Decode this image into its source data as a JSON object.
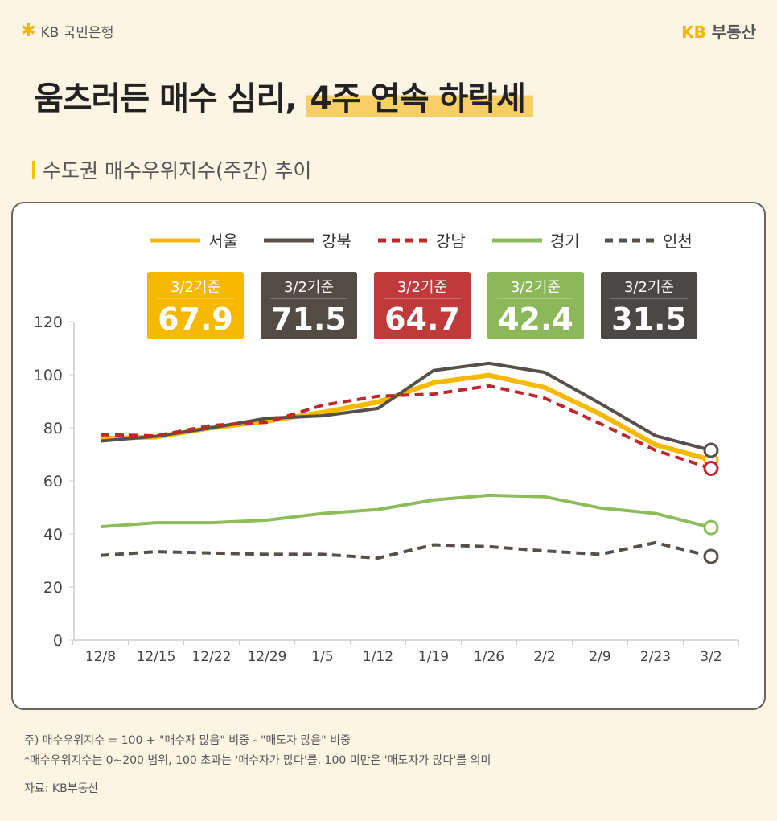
{
  "header": {
    "bank_logo_text": "KB 국민은행",
    "brand_kb": "KB",
    "brand_name": "부동산"
  },
  "title": {
    "main": "움츠러든 매수 심리,",
    "highlight": "4주 연속 하락세"
  },
  "subtitle": "수도권 매수우위지수(주간) 추이",
  "colors": {
    "seoul": "#f7b900",
    "gangbuk": "#56504a",
    "gangnam": "#c0272d",
    "gyeonggi": "#8dbd5a",
    "incheon": "#56504a"
  },
  "badges": [
    {
      "label": "3/2기준",
      "value": "67.9",
      "color": "#f7b900"
    },
    {
      "label": "3/2기준",
      "value": "71.5",
      "color": "#534c45"
    },
    {
      "label": "3/2기준",
      "value": "64.7",
      "color": "#bf3b3b"
    },
    {
      "label": "3/2기준",
      "value": "42.4",
      "color": "#8db85a"
    },
    {
      "label": "3/2기준",
      "value": "31.5",
      "color": "#4a4744"
    }
  ],
  "chart_data": {
    "type": "line",
    "categories": [
      "12/8",
      "12/15",
      "12/22",
      "12/29",
      "1/5",
      "1/12",
      "1/19",
      "1/26",
      "2/2",
      "2/9",
      "2/23",
      "3/2"
    ],
    "ylim": [
      0,
      120
    ],
    "yticks": [
      0,
      20,
      40,
      60,
      80,
      100,
      120
    ],
    "grid": false,
    "legend_placement": "top",
    "series": [
      {
        "name": "서울",
        "style": "solid",
        "color": "#f7b900",
        "values": [
          76,
          76.5,
          80,
          82.5,
          85.8,
          89.7,
          97,
          99.8,
          95.2,
          85.2,
          73.6,
          67.9
        ]
      },
      {
        "name": "강북",
        "style": "solid",
        "color": "#56504a",
        "values": [
          75,
          76.8,
          80,
          83.6,
          84.5,
          87.3,
          101.6,
          104.3,
          100.9,
          89.2,
          77,
          71.5
        ]
      },
      {
        "name": "강남",
        "style": "dashed",
        "color": "#c0272d",
        "values": [
          77.4,
          77,
          80.9,
          82.1,
          88.5,
          91.9,
          92.7,
          95.8,
          91.2,
          81.6,
          71.5,
          64.7
        ]
      },
      {
        "name": "경기",
        "style": "solid",
        "color": "#8dbd5a",
        "values": [
          42.7,
          44.2,
          44.2,
          45.2,
          47.7,
          49.2,
          52.8,
          54.6,
          54,
          49.8,
          47.7,
          42.4
        ]
      },
      {
        "name": "인천",
        "style": "dashed",
        "color": "#56504a",
        "values": [
          31.9,
          33.3,
          32.8,
          32.3,
          32.3,
          30.9,
          35.9,
          35.2,
          33.6,
          32.3,
          36.7,
          31.5
        ]
      }
    ]
  },
  "footnotes": {
    "line1": "주) 매수우위지수 = 100 + \"매수자 많음\" 비중 - \"매도자 많음\" 비중",
    "line2": "*매수우위지수는 0~200 범위, 100 초과는 '매수자가 많다'를, 100 미만은 '매도자가 많다'를 의미",
    "source": "자료: KB부동산"
  }
}
